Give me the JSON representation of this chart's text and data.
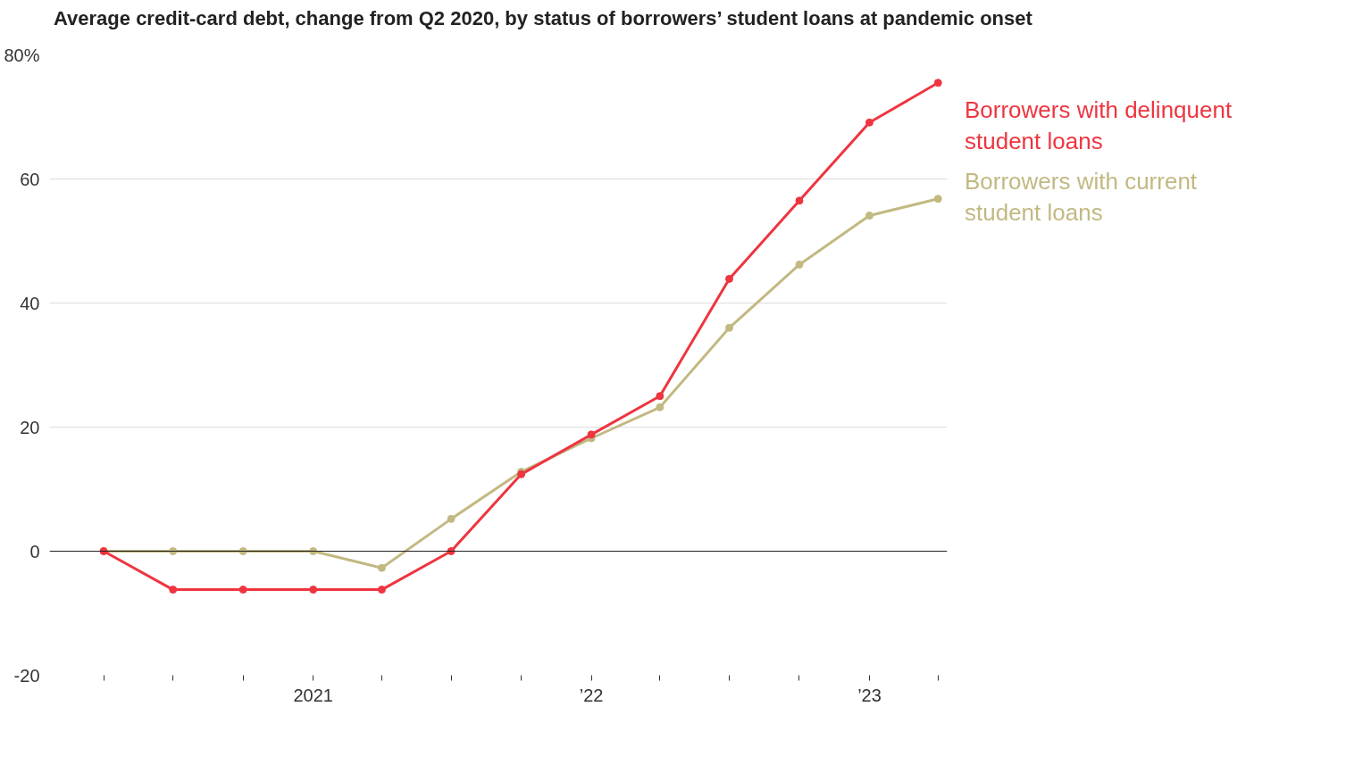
{
  "chart_data": {
    "type": "line",
    "title": "Average credit-card debt, change from Q2 2020, by status of borrowers’ student loans at pandemic onset",
    "x": [
      "2020-04-01",
      "2020-07-01",
      "2020-10-01",
      "2021-01-01",
      "2021-04-01",
      "2021-07-01",
      "2021-10-01",
      "2022-01-01",
      "2022-04-01",
      "2022-07-01",
      "2022-10-01",
      "2023-01-01",
      "2023-04-01"
    ],
    "series": [
      {
        "name": "Borrowers with delinquent student loans",
        "color": "#ee3540",
        "values": [
          0,
          -6.2,
          -6.2,
          -6.2,
          -6.2,
          0,
          12.4,
          18.8,
          25.0,
          43.9,
          56.5,
          69.1,
          75.5
        ]
      },
      {
        "name": "Borrowers with current student loans",
        "color": "#c2b982",
        "values": [
          0,
          0,
          0,
          0,
          -2.7,
          5.2,
          12.8,
          18.2,
          23.2,
          36.0,
          46.2,
          54.1,
          56.8
        ]
      }
    ],
    "xlim": [
      "2020-01-21",
      "2023-04-13"
    ],
    "xticks": [
      {
        "value": "2020-04-01",
        "label": null
      },
      {
        "value": "2020-07-01",
        "label": null
      },
      {
        "value": "2020-10-01",
        "label": null
      },
      {
        "value": "2021-01-01",
        "label": "2021"
      },
      {
        "value": "2021-04-01",
        "label": null
      },
      {
        "value": "2021-07-01",
        "label": null
      },
      {
        "value": "2021-10-01",
        "label": null
      },
      {
        "value": "2022-01-01",
        "label": "’22"
      },
      {
        "value": "2022-04-01",
        "label": null
      },
      {
        "value": "2022-07-01",
        "label": null
      },
      {
        "value": "2022-10-01",
        "label": null
      },
      {
        "value": "2023-01-01",
        "label": "’23"
      },
      {
        "value": "2023-04-01",
        "label": null
      }
    ],
    "ylim": [
      -20,
      80
    ],
    "yticks": [
      -20,
      0,
      20,
      40,
      {
        "value": 60,
        "label": "60"
      },
      {
        "value": 80,
        "label": "80%"
      }
    ],
    "ref_lines": [
      {
        "axis": "y",
        "value": 0,
        "color": "#222222"
      }
    ],
    "grid": "y",
    "marker": "circle",
    "line_style": "solid"
  }
}
